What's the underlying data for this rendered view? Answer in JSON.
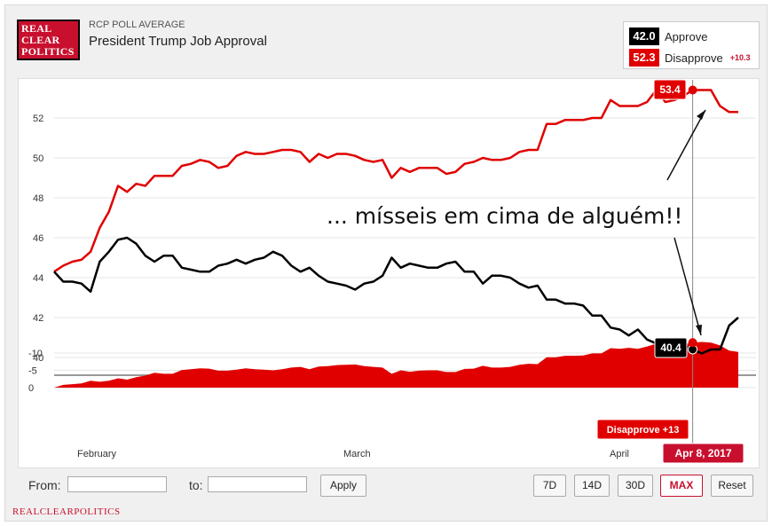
{
  "header": {
    "logo_lines": [
      "REAL",
      "CLEAR",
      "POLITICS"
    ],
    "subtitle": "RCP POLL AVERAGE",
    "title": "President Trump Job Approval"
  },
  "legend": {
    "approve_value": "42.0",
    "approve_label": "Approve",
    "disapprove_value": "52.3",
    "disapprove_label": "Disapprove",
    "spread": "+10.3"
  },
  "annotation": {
    "text": "... mísseis em cima de alguém!!",
    "disapprove_point_label": "53.4",
    "approve_point_label": "40.4",
    "spread_tooltip": "Disapprove +13",
    "date_tooltip": "Apr 8, 2017"
  },
  "controls": {
    "from_label": "From:",
    "to_label": "to:",
    "apply_label": "Apply",
    "ranges": [
      "7D",
      "14D",
      "30D",
      "MAX",
      "Reset"
    ],
    "active_range": "MAX"
  },
  "footer": "REALCLEARPOLITICS",
  "colors": {
    "approve": "#000000",
    "disapprove": "#e00000",
    "brand": "#c8102e"
  },
  "chart_data": {
    "type": "line",
    "title": "President Trump Job Approval",
    "x_tick_labels": [
      "February",
      "March",
      "April"
    ],
    "y_ticks": [
      40,
      42,
      44,
      46,
      48,
      50,
      52
    ],
    "ylim": [
      39,
      54
    ],
    "spread_ticks": [
      0,
      -5,
      -10
    ],
    "spread_ylim": [
      -13,
      0
    ],
    "series": [
      {
        "name": "Approve",
        "color": "#000000",
        "values": [
          44.3,
          43.8,
          43.8,
          43.7,
          43.3,
          44.8,
          45.3,
          45.9,
          46.0,
          45.7,
          45.1,
          44.8,
          45.1,
          45.1,
          44.5,
          44.4,
          44.3,
          44.3,
          44.6,
          44.7,
          44.9,
          44.7,
          44.9,
          45.0,
          45.3,
          45.1,
          44.6,
          44.3,
          44.5,
          44.1,
          43.8,
          43.7,
          43.6,
          43.4,
          43.7,
          43.8,
          44.1,
          45.0,
          44.5,
          44.7,
          44.6,
          44.5,
          44.5,
          44.7,
          44.8,
          44.3,
          44.3,
          43.7,
          44.1,
          44.1,
          44.0,
          43.7,
          43.5,
          43.6,
          42.9,
          42.9,
          42.7,
          42.7,
          42.6,
          42.1,
          42.1,
          41.5,
          41.4,
          41.1,
          41.4,
          40.9,
          40.7,
          40.6,
          40.5,
          40.6,
          40.4,
          40.2,
          40.4,
          40.4,
          41.6,
          42.0
        ]
      },
      {
        "name": "Disapprove",
        "color": "#e00000",
        "values": [
          44.3,
          44.6,
          44.8,
          44.9,
          45.3,
          46.5,
          47.3,
          48.6,
          48.3,
          48.7,
          48.6,
          49.1,
          49.1,
          49.1,
          49.6,
          49.7,
          49.9,
          49.8,
          49.5,
          49.6,
          50.1,
          50.3,
          50.2,
          50.2,
          50.3,
          50.4,
          50.4,
          50.3,
          49.8,
          50.2,
          50.0,
          50.2,
          50.2,
          50.1,
          49.9,
          49.8,
          49.9,
          49.0,
          49.5,
          49.3,
          49.5,
          49.5,
          49.5,
          49.2,
          49.3,
          49.7,
          49.8,
          50.0,
          49.9,
          49.9,
          50.0,
          50.3,
          50.4,
          50.4,
          51.7,
          51.7,
          51.9,
          51.9,
          51.9,
          52.0,
          52.0,
          52.9,
          52.6,
          52.6,
          52.6,
          52.8,
          53.4,
          52.8,
          52.9,
          53.1,
          53.4,
          53.4,
          53.4,
          52.6,
          52.3,
          52.3
        ]
      },
      {
        "name": "Spread",
        "color": "#e00000",
        "values": [
          0,
          -0.8,
          -1.0,
          -1.2,
          -2.0,
          -1.7,
          -2.0,
          -2.7,
          -2.3,
          -3.0,
          -3.5,
          -4.3,
          -4.0,
          -4.0,
          -5.1,
          -5.3,
          -5.6,
          -5.5,
          -4.9,
          -4.9,
          -5.2,
          -5.6,
          -5.3,
          -5.2,
          -5.0,
          -5.3,
          -5.8,
          -6.0,
          -5.3,
          -6.1,
          -6.2,
          -6.5,
          -6.6,
          -6.7,
          -6.2,
          -6.0,
          -5.8,
          -4.0,
          -5.0,
          -4.6,
          -4.9,
          -5.0,
          -5.0,
          -4.5,
          -4.5,
          -5.4,
          -5.5,
          -6.3,
          -5.8,
          -5.8,
          -6.0,
          -6.6,
          -6.9,
          -6.8,
          -8.8,
          -8.8,
          -9.2,
          -9.2,
          -9.3,
          -9.9,
          -9.9,
          -11.4,
          -11.2,
          -11.5,
          -11.2,
          -11.9,
          -12.7,
          -12.2,
          -12.4,
          -12.5,
          -13.0,
          -13.2,
          -13.0,
          -12.2,
          -10.7,
          -10.3
        ]
      }
    ]
  }
}
